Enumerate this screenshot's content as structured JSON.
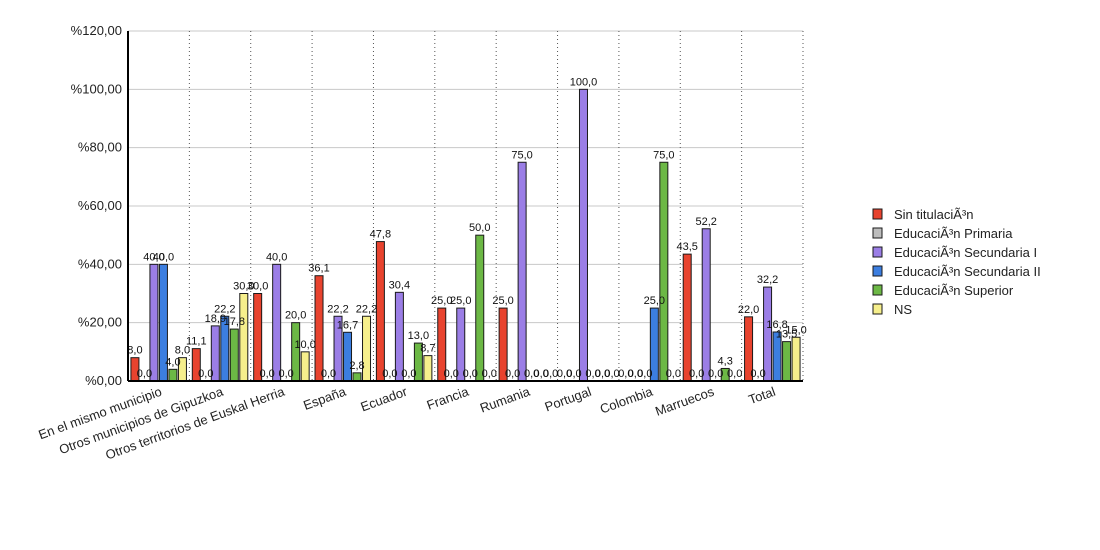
{
  "chart_data": {
    "type": "bar",
    "title": "",
    "xlabel": "",
    "ylabel": "",
    "ylim": [
      0,
      120
    ],
    "y_ticks": [
      "%0,00",
      "%20,00",
      "%40,00",
      "%60,00",
      "%80,00",
      "%100,00",
      "%120,00"
    ],
    "y_tick_values": [
      0,
      20,
      40,
      60,
      80,
      100,
      120
    ],
    "grid": true,
    "legend_position": "right",
    "categories": [
      "En el mismo municipio",
      "Otros municipios de Gipuzkoa",
      "Otros territorios de Euskal Herria",
      "España",
      "Ecuador",
      "Francia",
      "Rumania",
      "Portugal",
      "Colombia",
      "Marruecos",
      "Total"
    ],
    "series": [
      {
        "name": "Sin titulaciÃ³n",
        "color": "#e8432e",
        "values": [
          8.0,
          11.1,
          30.0,
          36.1,
          47.8,
          25.0,
          25.0,
          0.0,
          0.0,
          43.5,
          22.0
        ],
        "labels": [
          "8,0",
          "11,1",
          "30,0",
          "36,1",
          "47,8",
          "25,0",
          "25,0",
          "0,0",
          "0,0",
          "43,5",
          "22,0"
        ]
      },
      {
        "name": "EducaciÃ³n Primaria",
        "color": "#bdbdbd",
        "values": [
          0.0,
          0.0,
          0.0,
          0.0,
          0.0,
          0.0,
          0.0,
          0.0,
          0.0,
          0.0,
          0.0
        ],
        "labels": [
          "0,0",
          "0,0",
          "0,0",
          "0,0",
          "0,0",
          "0,0",
          "0,0",
          "0,0",
          "0,0",
          "0,0",
          "0,0"
        ]
      },
      {
        "name": "EducaciÃ³n Secundaria I",
        "color": "#9b7ee6",
        "values": [
          40.0,
          18.9,
          40.0,
          22.2,
          30.4,
          25.0,
          75.0,
          100.0,
          0.0,
          52.2,
          32.2
        ],
        "labels": [
          "40,0",
          "18,9",
          "40,0",
          "22,2",
          "30,4",
          "25,0",
          "75,0",
          "100,0",
          "0,0",
          "52,2",
          "32,2"
        ]
      },
      {
        "name": "EducaciÃ³n Secundaria II",
        "color": "#3c7ee0",
        "values": [
          40.0,
          22.2,
          0.0,
          16.7,
          0.0,
          0.0,
          0.0,
          0.0,
          25.0,
          0.0,
          16.8
        ],
        "labels": [
          "40,0",
          "22,2",
          "0,0",
          "16,7",
          "0,0",
          "0,0",
          "0,0",
          "0,0",
          "25,0",
          "0,0",
          "16,8"
        ]
      },
      {
        "name": "EducaciÃ³n Superior",
        "color": "#6cb845",
        "values": [
          4.0,
          17.8,
          20.0,
          2.8,
          13.0,
          50.0,
          0.0,
          0.0,
          75.0,
          4.3,
          13.5
        ],
        "labels": [
          "4,0",
          "17,8",
          "20,0",
          "2,8",
          "13,0",
          "50,0",
          "0,0",
          "0,0",
          "75,0",
          "4,3",
          "13,5"
        ]
      },
      {
        "name": "NS",
        "color": "#f6ef8c",
        "values": [
          8.0,
          30.0,
          10.0,
          22.2,
          8.7,
          0.0,
          0.0,
          0.0,
          0.0,
          0.0,
          15.0
        ],
        "labels": [
          "8,0",
          "30,0",
          "10,0",
          "22,2",
          "8,7",
          "0,0",
          "0,0",
          "0,0",
          "0,0",
          "0,0",
          "15,0"
        ]
      }
    ]
  }
}
